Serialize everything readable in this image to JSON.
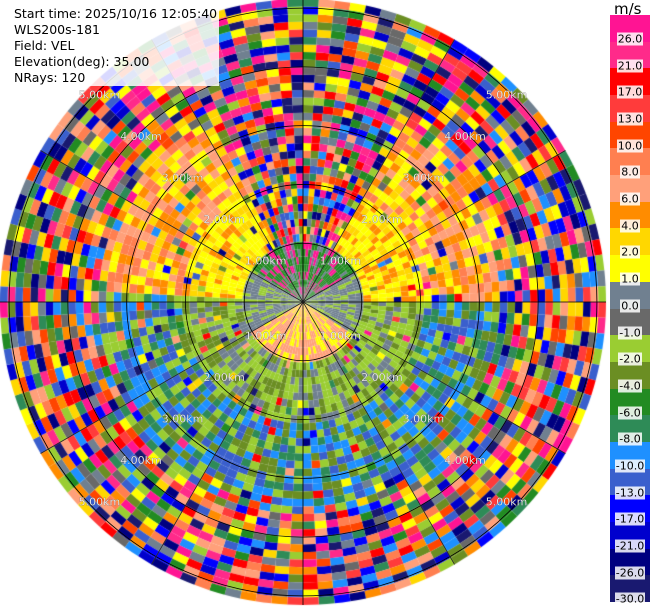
{
  "info": {
    "start_time": "Start time: 2025/10/16 12:05:40",
    "instrument": "WLS200s-181",
    "field": "Field: VEL",
    "elevation": "Elevation(deg): 35.00",
    "nrays": "NRays: 120"
  },
  "colorbar": {
    "unit": "m/s",
    "labels": [
      "26.0",
      "21.0",
      "17.0",
      "13.0",
      "10.0",
      "8.0",
      "6.0",
      "4.0",
      "2.0",
      "1.0",
      "0.0",
      "-1.0",
      "-2.0",
      "-4.0",
      "-6.0",
      "-8.0",
      "-10.0",
      "-13.0",
      "-17.0",
      "-21.0",
      "-26.0",
      "-30.0"
    ],
    "colors": [
      "#ff1493",
      "#ff2a8a",
      "#ff0000",
      "#ff3b3b",
      "#ff4500",
      "#ff7f50",
      "#ffa07a",
      "#ff8c00",
      "#ffd700",
      "#ffff00",
      "#708090",
      "#696969",
      "#9acd32",
      "#6b8e23",
      "#228b22",
      "#2e8b57",
      "#1e90ff",
      "#3a5fcd",
      "#0000ff",
      "#0000cd",
      "#000080",
      "#191970"
    ]
  },
  "range_labels": [
    "1.00km",
    "2.00km",
    "3.00km",
    "4.00km",
    "5.00km"
  ]
}
